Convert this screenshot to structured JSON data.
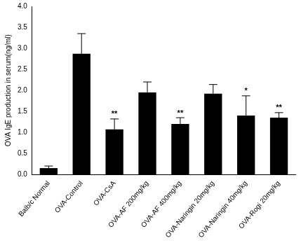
{
  "chart_data": {
    "type": "bar",
    "y_label": "OVA IgE production in serum(ng/ml)",
    "categories": [
      "Balb/c Normal",
      "OVA-Control",
      "OVA-CsA",
      "OVA-AF 200mg/kg",
      "OVA-AF 400mg/kg",
      "OVA-Naringin 20mg/kg",
      "OVA-Naringin 40mg/kg",
      "OVA-Rogi 20mg/kg"
    ],
    "values": [
      0.15,
      2.87,
      1.07,
      1.95,
      1.2,
      1.92,
      1.4,
      1.35
    ],
    "errors": [
      0.05,
      0.48,
      0.25,
      0.25,
      0.15,
      0.22,
      0.47,
      0.12
    ],
    "annotations": [
      null,
      null,
      "**",
      null,
      "**",
      null,
      "*",
      "**"
    ],
    "color": "#000000",
    "ylim": [
      0,
      4
    ],
    "yticks": [
      {
        "value": 0,
        "label": "0.0"
      },
      0.5,
      {
        "value": 1,
        "label": "1.0"
      },
      1.5,
      {
        "value": 2,
        "label": "2.0"
      },
      2.5,
      {
        "value": 3,
        "label": "3.0"
      },
      3.5,
      {
        "value": 4,
        "label": "4.0"
      }
    ],
    "grid": false
  }
}
